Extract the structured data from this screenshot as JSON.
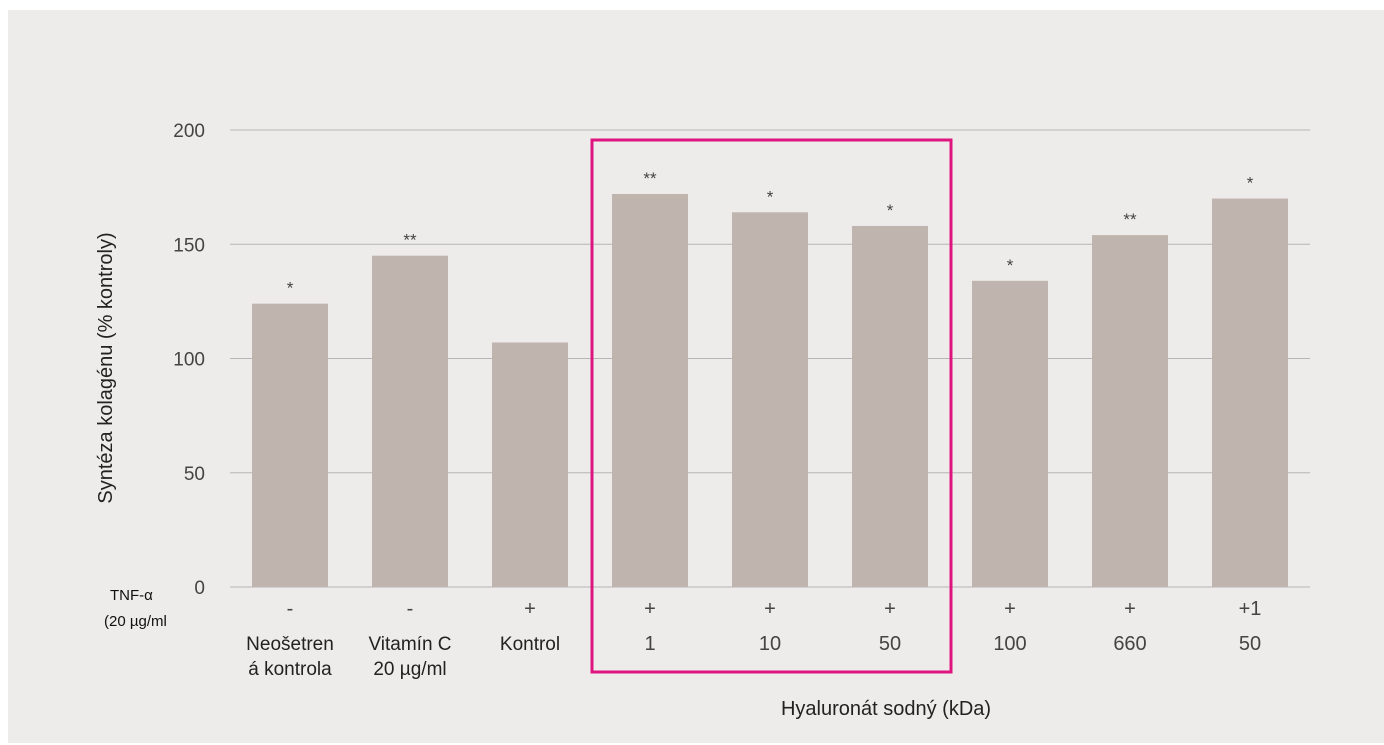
{
  "chart_data": {
    "type": "bar",
    "ylabel": "Syntéza kolagénu (% kontroly)",
    "xlabel": "Hyaluronát sodný (kDa)",
    "ylim": [
      0,
      200
    ],
    "yticks": [
      "0",
      "50",
      "100",
      "150",
      "200"
    ],
    "grid": true,
    "row_header": [
      "TNF-α",
      "(20 µg/ml"
    ],
    "categories": [
      [
        "Neošetren",
        "á kontrola"
      ],
      [
        "Vitamín C",
        "20 µg/ml"
      ],
      [
        "Kontrol"
      ],
      [
        "1"
      ],
      [
        "10"
      ],
      [
        "50"
      ],
      [
        "100"
      ],
      [
        "660"
      ],
      [
        "50"
      ]
    ],
    "tnf": [
      "-",
      "-",
      "+",
      "+",
      "+",
      "+",
      "+",
      "+",
      "+1"
    ],
    "values": [
      124,
      145,
      107,
      172,
      164,
      158,
      134,
      154,
      170
    ],
    "significance": [
      "*",
      "**",
      "",
      "**",
      "*",
      "*",
      "*",
      "**",
      "*"
    ],
    "highlight": {
      "from_index": 3,
      "to_index": 5,
      "color": "#e0147f"
    },
    "colors": {
      "bar": "#bfb5ae",
      "grid": "#b5b5b5",
      "panel": "#eeecea"
    }
  }
}
